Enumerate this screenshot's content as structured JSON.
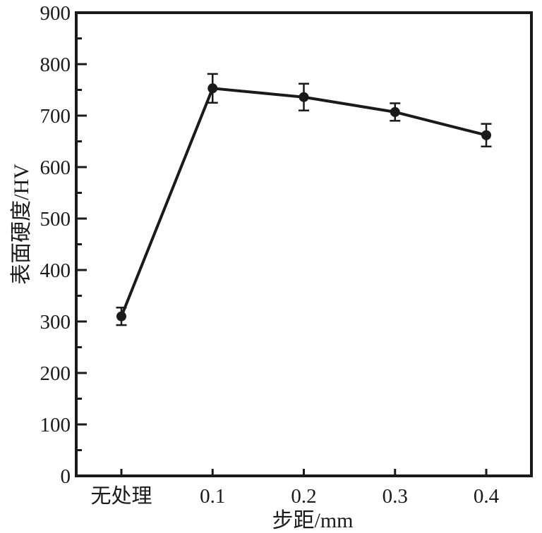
{
  "figure": {
    "background": "#ffffff",
    "ink_color": "#1a1a1a"
  },
  "chart_data": {
    "type": "line",
    "title": "",
    "xlabel": "步距/mm",
    "ylabel": "表面硬度/HV",
    "categories": [
      "无处理",
      "0.1",
      "0.2",
      "0.3",
      "0.4"
    ],
    "series": [
      {
        "name": "表面硬度",
        "values": [
          310,
          753,
          736,
          707,
          662
        ],
        "errors": [
          17,
          28,
          26,
          17,
          22
        ]
      }
    ],
    "ylim": [
      0,
      900
    ],
    "yticks": [
      0,
      100,
      200,
      300,
      400,
      500,
      600,
      700,
      800,
      900
    ],
    "y_minor_step": 50,
    "grid": false,
    "legend": null,
    "marker": "filled-circle",
    "error_bars": true,
    "line_color": "#1a1a1a",
    "marker_color": "#1a1a1a"
  }
}
